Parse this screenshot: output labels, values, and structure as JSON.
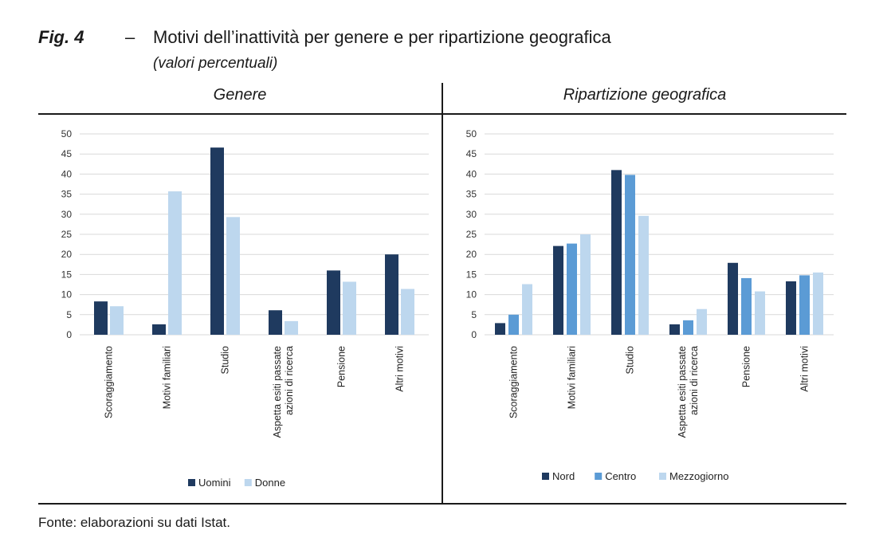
{
  "figure": {
    "label": "Fig. 4",
    "dash": "–",
    "title": "Motivi dell’inattività per genere e per ripartizione geografica",
    "subtitle": "(valori percentuali)",
    "source": "Fonte: elaborazioni su dati Istat."
  },
  "chart_data": [
    {
      "type": "bar",
      "title": "Genere",
      "categories": [
        "Scoraggiamento",
        "Motivi familiari",
        "Studio",
        "Aspetta esiti passate azioni di ricerca",
        "Pensione",
        "Altri motivi"
      ],
      "category_lines": [
        [
          "Scoraggiamento"
        ],
        [
          "Motivi familiari"
        ],
        [
          "Studio"
        ],
        [
          "Aspetta esiti passate",
          "azioni di ricerca"
        ],
        [
          "Pensione"
        ],
        [
          "Altri motivi"
        ]
      ],
      "series": [
        {
          "name": "Uomini",
          "color": "#1f3a5f",
          "values": [
            8.3,
            2.6,
            46.6,
            6.1,
            16.0,
            20.0
          ]
        },
        {
          "name": "Donne",
          "color": "#bdd7ee",
          "values": [
            7.1,
            35.7,
            29.3,
            3.4,
            13.2,
            11.4
          ]
        }
      ],
      "ylim": [
        0,
        50
      ],
      "yticks": [
        "0",
        "5",
        "10",
        "15",
        "20",
        "25",
        "30",
        "35",
        "40",
        "45",
        "50"
      ],
      "grid": true,
      "legend": "bottom"
    },
    {
      "type": "bar",
      "title": "Ripartizione geografica",
      "categories": [
        "Scoraggiamento",
        "Motivi familiari",
        "Studio",
        "Aspetta esiti passate azioni di ricerca",
        "Pensione",
        "Altri motivi"
      ],
      "category_lines": [
        [
          "Scoraggiamento"
        ],
        [
          "Motivi familiari"
        ],
        [
          "Studio"
        ],
        [
          "Aspetta esiti passate",
          "azioni di ricerca"
        ],
        [
          "Pensione"
        ],
        [
          "Altri motivi"
        ]
      ],
      "series": [
        {
          "name": "Nord",
          "color": "#1f3a5f",
          "values": [
            2.9,
            22.1,
            41.0,
            2.6,
            17.9,
            13.3
          ]
        },
        {
          "name": "Centro",
          "color": "#5b9bd5",
          "values": [
            5.0,
            22.7,
            39.8,
            3.6,
            14.1,
            14.8
          ]
        },
        {
          "name": "Mezzogiorno",
          "color": "#bdd7ee",
          "values": [
            12.6,
            25.0,
            29.6,
            6.4,
            10.8,
            15.5
          ]
        }
      ],
      "ylim": [
        0,
        50
      ],
      "yticks": [
        "0",
        "5",
        "10",
        "15",
        "20",
        "25",
        "30",
        "35",
        "40",
        "45",
        "50"
      ],
      "grid": true,
      "legend": "bottom"
    }
  ]
}
